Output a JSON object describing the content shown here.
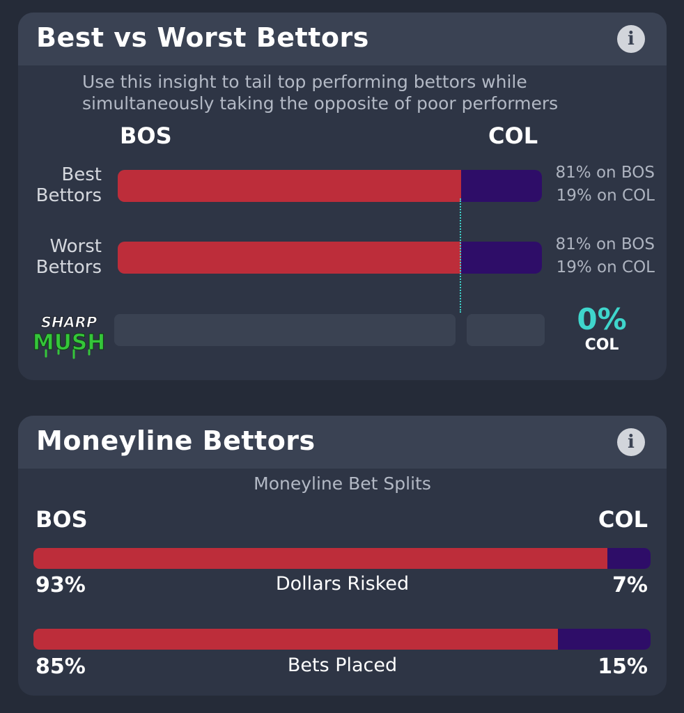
{
  "best_vs_worst": {
    "title": "Best vs Worst Bettors",
    "info_icon": "i",
    "subtitle_line1": "Use this insight to tail top performing bettors while",
    "subtitle_line2": "simultaneously taking the opposite of poor performers",
    "team_a": "BOS",
    "team_b": "COL",
    "rows": [
      {
        "label_line1": "Best",
        "label_line2": "Bettors",
        "pct_a": 81,
        "pct_b": 19,
        "text_a": "81% on BOS",
        "text_b": "19% on COL"
      },
      {
        "label_line1": "Worst",
        "label_line2": "Bettors",
        "pct_a": 81,
        "pct_b": 19,
        "text_a": "81% on BOS",
        "text_b": "19% on COL"
      }
    ],
    "sharp_mush": {
      "logo_line1": "SHARP",
      "logo_line2": "MUSH",
      "value": "0%",
      "team": "COL"
    }
  },
  "moneyline": {
    "title": "Moneyline Bettors",
    "info_icon": "i",
    "subtitle": "Moneyline Bet Splits",
    "team_a": "BOS",
    "team_b": "COL",
    "splits": [
      {
        "label": "Dollars Risked",
        "pct_a": 93,
        "pct_b": 7,
        "text_a": "93%",
        "text_b": "7%"
      },
      {
        "label": "Bets Placed",
        "pct_a": 85,
        "pct_b": 15,
        "text_a": "85%",
        "text_b": "15%"
      }
    ]
  },
  "colors": {
    "team_a": "#bd2d3a",
    "team_b": "#2e0d68",
    "accent": "#3fd6cc",
    "logo_green": "#35c63a"
  }
}
